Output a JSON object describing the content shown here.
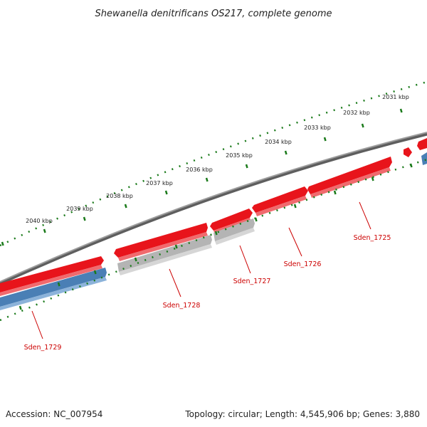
{
  "title": "Shewanella denitrificans OS217, complete genome",
  "footer": {
    "accession": "Accession: NC_007954",
    "stats": "Topology: circular; Length: 4,545,906 bp; Genes: 3,880"
  },
  "ruler": {
    "labels": [
      "2031 kbp",
      "2032 kbp",
      "2033 kbp",
      "2034 kbp",
      "2035 kbp",
      "2036 kbp",
      "2037 kbp",
      "2038 kbp",
      "2039 kbp",
      "2040 kbp"
    ]
  },
  "genes": [
    {
      "name": "Sden_1725",
      "strand": "forward",
      "color": "#e8141b"
    },
    {
      "name": "Sden_1726",
      "strand": "forward",
      "color": "#e8141b"
    },
    {
      "name": "Sden_1727",
      "strand": "reverse",
      "color": "#b4b4b4"
    },
    {
      "name": "Sden_1728",
      "strand": "reverse",
      "color": "#b4b4b4"
    },
    {
      "name": "Sden_1729",
      "strand": "reverse",
      "color": "#4a7fb5"
    }
  ],
  "colors": {
    "backbone": "#7a7a7a",
    "forward_gene": "#e8141b",
    "reverse_gene_grey": "#b4b4b4",
    "reverse_gene_blue": "#4a7fb5",
    "ruler_ticks": "#1a7a1a",
    "gene_label": "#cc0000"
  }
}
